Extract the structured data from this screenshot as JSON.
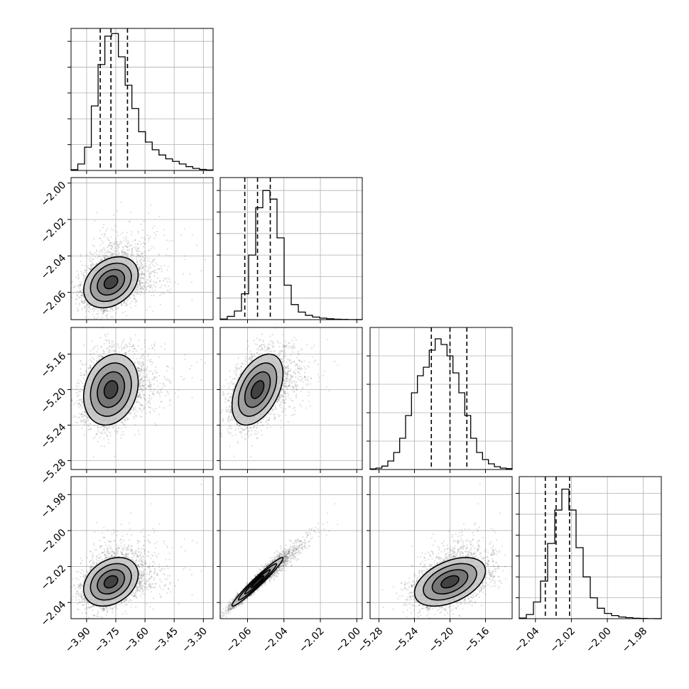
{
  "chart_data": {
    "type": "corner",
    "grid": true,
    "parameters": [
      {
        "range": [
          -3.98,
          -3.25
        ],
        "ticks": [
          -3.9,
          -3.75,
          -3.6,
          -3.45,
          -3.3
        ],
        "tick_labels": [
          "−3.90",
          "−3.75",
          "−3.60",
          "−3.45",
          "−3.30"
        ],
        "quantiles": [
          -3.83,
          -3.775,
          -3.69
        ],
        "histogram": [
          0.3,
          2.5,
          9,
          25,
          41,
          52,
          53,
          44,
          33,
          24,
          15,
          11,
          8,
          6,
          4.5,
          3.5,
          2.5,
          1.5,
          0.8,
          0.4,
          0.2
        ],
        "hist_yticks": [
          10,
          20,
          30,
          40,
          50
        ],
        "hist_ylim": [
          0,
          55
        ]
      },
      {
        "range": [
          -2.075,
          -1.997
        ],
        "ticks": [
          -2.06,
          -2.04,
          -2.02,
          -2.0
        ],
        "tick_labels": [
          "−2.06",
          "−2.04",
          "−2.02",
          "−2.00"
        ],
        "quantiles": [
          -2.0615,
          -2.0545,
          -2.0475
        ],
        "histogram": [
          0.3,
          1.5,
          4,
          12,
          30,
          52,
          60,
          56,
          38,
          16,
          7,
          3.5,
          2,
          1.2,
          0.7,
          0.4,
          0.2,
          0.1,
          0.05,
          0.02
        ],
        "hist_yticks": [
          10,
          20,
          30,
          40,
          50,
          60
        ],
        "hist_ylim": [
          0,
          66
        ]
      },
      {
        "range": [
          -5.29,
          -5.13
        ],
        "ticks": [
          -5.28,
          -5.24,
          -5.2,
          -5.16
        ],
        "tick_labels": [
          "−5.28",
          "−5.24",
          "−5.20",
          "−5.16"
        ],
        "quantiles": [
          -5.221,
          -5.2,
          -5.181
        ],
        "histogram": [
          0.2,
          0.5,
          1.2,
          3,
          6,
          11,
          19,
          27,
          33,
          36,
          42,
          46,
          44,
          40,
          34,
          27,
          19,
          11,
          6,
          3.5,
          2,
          1,
          0.5,
          0.3
        ],
        "hist_yticks": [
          10,
          20,
          30,
          40
        ],
        "hist_ylim": [
          0,
          50
        ]
      },
      {
        "range": [
          -2.049,
          -1.97
        ],
        "ticks": [
          -2.04,
          -2.02,
          -2.0,
          -1.98
        ],
        "tick_labels": [
          "−2.04",
          "−2.02",
          "−2.00",
          "−1.98"
        ],
        "quantiles": [
          -2.0345,
          -2.0285,
          -2.021
        ],
        "histogram": [
          0.3,
          2,
          8,
          18,
          36,
          52,
          62,
          52,
          34,
          20,
          10,
          5,
          2.5,
          1.5,
          0.8,
          0.5,
          0.2,
          0.1,
          0.05,
          0.02
        ],
        "hist_yticks": [
          10,
          20,
          30,
          40,
          50,
          60
        ],
        "hist_ylim": [
          0,
          68
        ]
      }
    ],
    "correlations": {
      "1-0": 0.3,
      "2-0": 0.2,
      "2-1": 0.45,
      "3-0": 0.3,
      "3-1": 0.97,
      "3-2": 0.45
    },
    "skew": [
      0.9,
      0.9,
      0.15,
      0.7
    ]
  }
}
